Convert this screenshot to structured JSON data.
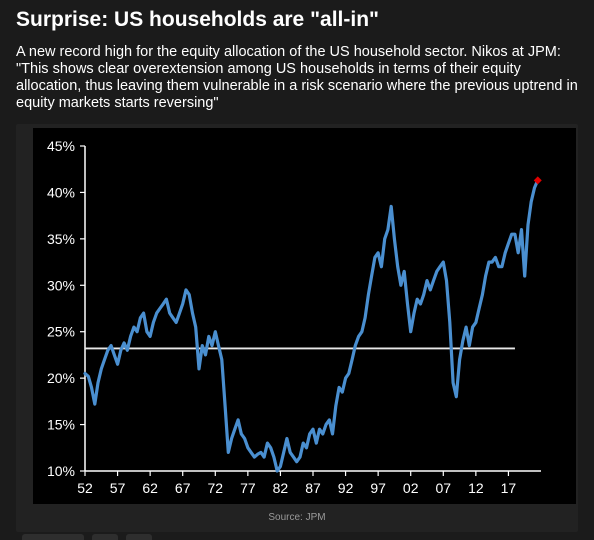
{
  "article": {
    "headline": "Surprise: US households are \"all-in\"",
    "subtext": "A new record high for the equity allocation of the US household sector. Nikos at JPM: \"This shows clear overextension among US households in terms of their equity allocation, thus leaving them vulnerable in a risk scenario where the previous uptrend in equity markets starts reversing\"",
    "source": "Source: JPM"
  },
  "colors": {
    "series": "#4a8fd0",
    "reference_line": "#e8e8e8",
    "marker": "#e00000",
    "plot_background": "#000000"
  },
  "chart_data": {
    "type": "line",
    "title": "",
    "xlabel": "",
    "ylabel": "",
    "x_ticks": [
      "52",
      "57",
      "62",
      "67",
      "72",
      "77",
      "82",
      "87",
      "92",
      "97",
      "02",
      "07",
      "12",
      "17"
    ],
    "y_ticks": [
      "10%",
      "15%",
      "20%",
      "25%",
      "30%",
      "35%",
      "40%",
      "45%"
    ],
    "xlim": [
      1952,
      2022
    ],
    "ylim": [
      10,
      45
    ],
    "grid": false,
    "reference_line": {
      "value": 23.2,
      "x_start": 1952,
      "x_end": 2018
    },
    "series": [
      {
        "name": "",
        "x": [
          1952.0,
          1952.5,
          1953.0,
          1953.5,
          1954.0,
          1954.5,
          1955.0,
          1955.5,
          1956.0,
          1956.5,
          1957.0,
          1957.5,
          1958.0,
          1958.5,
          1959.0,
          1959.5,
          1960.0,
          1960.5,
          1961.0,
          1961.5,
          1962.0,
          1962.5,
          1963.0,
          1963.5,
          1964.0,
          1964.5,
          1965.0,
          1965.5,
          1966.0,
          1966.5,
          1967.0,
          1967.5,
          1968.0,
          1968.5,
          1969.0,
          1969.5,
          1970.0,
          1970.5,
          1971.0,
          1971.5,
          1972.0,
          1972.5,
          1973.0,
          1973.5,
          1974.0,
          1974.5,
          1975.0,
          1975.5,
          1976.0,
          1976.5,
          1977.0,
          1977.5,
          1978.0,
          1978.5,
          1979.0,
          1979.5,
          1980.0,
          1980.5,
          1981.0,
          1981.5,
          1982.0,
          1982.5,
          1983.0,
          1983.5,
          1984.0,
          1984.5,
          1985.0,
          1985.5,
          1986.0,
          1986.5,
          1987.0,
          1987.5,
          1988.0,
          1988.5,
          1989.0,
          1989.5,
          1990.0,
          1990.5,
          1991.0,
          1991.5,
          1992.0,
          1992.5,
          1993.0,
          1993.5,
          1994.0,
          1994.5,
          1995.0,
          1995.5,
          1996.0,
          1996.5,
          1997.0,
          1997.5,
          1998.0,
          1998.5,
          1999.0,
          1999.5,
          2000.0,
          2000.5,
          2001.0,
          2001.5,
          2002.0,
          2002.5,
          2003.0,
          2003.5,
          2004.0,
          2004.5,
          2005.0,
          2005.5,
          2006.0,
          2006.5,
          2007.0,
          2007.5,
          2008.0,
          2008.5,
          2009.0,
          2009.5,
          2010.0,
          2010.5,
          2011.0,
          2011.5,
          2012.0,
          2012.5,
          2013.0,
          2013.5,
          2014.0,
          2014.5,
          2015.0,
          2015.5,
          2016.0,
          2016.5,
          2017.0,
          2017.5,
          2018.0,
          2018.5,
          2019.0,
          2019.5,
          2020.0,
          2020.5,
          2021.0,
          2021.5
        ],
        "values": [
          20.5,
          20.2,
          19.0,
          17.2,
          19.5,
          21.0,
          22.0,
          23.0,
          23.5,
          22.5,
          21.5,
          23.0,
          23.8,
          23.0,
          24.5,
          25.5,
          25.0,
          26.5,
          27.0,
          25.0,
          24.5,
          26.0,
          27.0,
          27.5,
          28.0,
          28.5,
          27.0,
          26.5,
          26.0,
          27.0,
          28.0,
          29.5,
          29.0,
          27.0,
          25.5,
          21.0,
          23.5,
          22.5,
          24.5,
          23.5,
          25.0,
          23.5,
          22.0,
          17.0,
          12.0,
          13.5,
          14.5,
          15.5,
          14.0,
          13.5,
          12.5,
          12.0,
          11.5,
          11.8,
          12.0,
          11.5,
          13.0,
          12.5,
          11.5,
          10.0,
          10.5,
          12.0,
          13.5,
          12.0,
          11.5,
          11.0,
          11.5,
          13.0,
          12.5,
          14.0,
          14.5,
          13.0,
          14.5,
          14.0,
          15.0,
          15.5,
          14.0,
          17.0,
          19.0,
          18.5,
          20.0,
          20.5,
          22.0,
          23.5,
          24.5,
          25.0,
          26.5,
          29.0,
          31.0,
          33.0,
          33.5,
          32.0,
          35.0,
          36.0,
          38.5,
          35.0,
          32.0,
          30.0,
          31.5,
          28.0,
          25.0,
          27.0,
          28.5,
          28.0,
          29.0,
          30.5,
          29.5,
          30.5,
          31.5,
          32.0,
          32.5,
          30.5,
          26.0,
          19.5,
          18.0,
          22.0,
          24.0,
          25.5,
          23.5,
          25.5,
          26.0,
          27.5,
          29.0,
          31.0,
          32.5,
          32.5,
          33.0,
          32.0,
          32.0,
          33.5,
          34.5,
          35.5,
          35.5,
          33.5,
          36.0,
          31.0,
          36.5,
          39.0,
          40.5,
          41.3
        ],
        "color": "#4a8fd0"
      }
    ],
    "highlight_point": {
      "x": 2021.5,
      "value": 41.3
    }
  }
}
